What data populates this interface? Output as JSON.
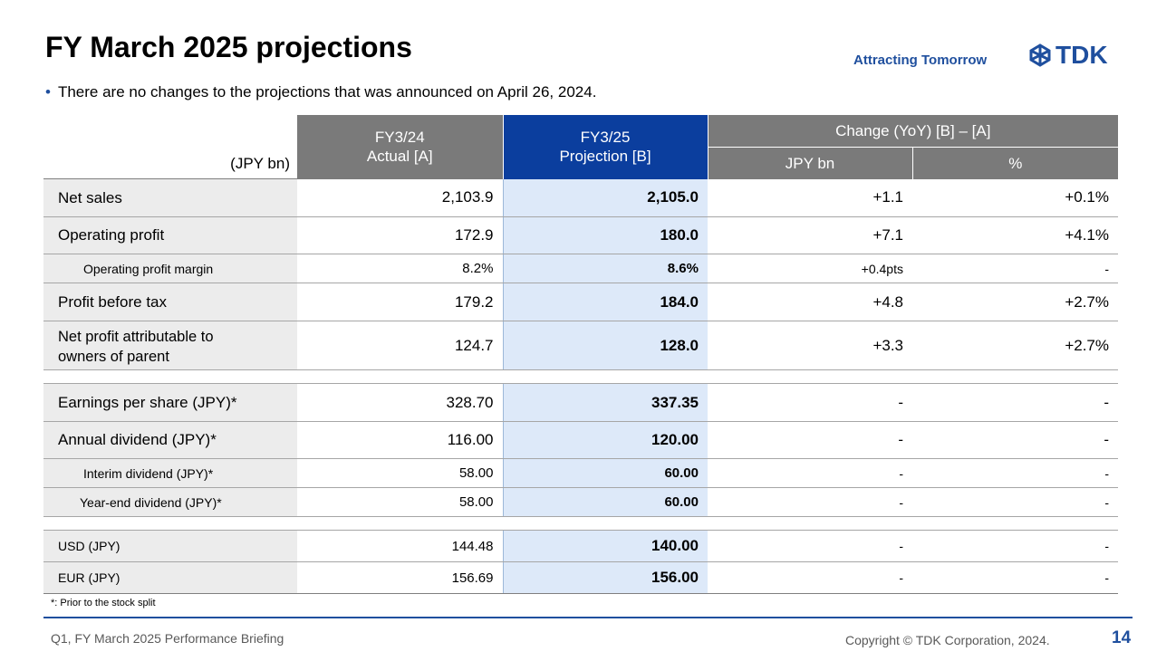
{
  "header": {
    "title": "FY March 2025 projections",
    "tagline": "Attracting Tomorrow",
    "logo_text": "TDK"
  },
  "bullet": "There are no changes to the projections that was announced on April 26, 2024.",
  "table": {
    "unit": "(JPY bn)",
    "col_actual_l1": "FY3/24",
    "col_actual_l2": "Actual [A]",
    "col_proj_l1": "FY3/25",
    "col_proj_l2": "Projection [B]",
    "col_change": "Change (YoY) [B] – [A]",
    "col_change_jpy": "JPY bn",
    "col_change_pct": "%",
    "rows": [
      {
        "label": "Net sales",
        "actual": "2,103.9",
        "projection": "2,105.0",
        "change": "+1.1",
        "pct": "+0.1%"
      },
      {
        "label": "Operating profit",
        "actual": "172.9",
        "projection": "180.0",
        "change": "+7.1",
        "pct": "+4.1%"
      },
      {
        "label": "Operating profit margin",
        "actual": "8.2%",
        "projection": "8.6%",
        "change": "+0.4pts",
        "pct": "-"
      },
      {
        "label": "Profit before tax",
        "actual": "179.2",
        "projection": "184.0",
        "change": "+4.8",
        "pct": "+2.7%"
      },
      {
        "label_l1": "Net profit attributable to",
        "label_l2": "owners of parent",
        "actual": "124.7",
        "projection": "128.0",
        "change": "+3.3",
        "pct": "+2.7%"
      },
      {
        "label": "Earnings per share (JPY)*",
        "actual": "328.70",
        "projection": "337.35",
        "change": "-",
        "pct": "-"
      },
      {
        "label": "Annual dividend (JPY)*",
        "actual": "116.00",
        "projection": "120.00",
        "change": "-",
        "pct": "-"
      },
      {
        "label": "Interim dividend (JPY)*",
        "actual": "58.00",
        "projection": "60.00",
        "change": "-",
        "pct": "-"
      },
      {
        "label": "Year-end dividend (JPY)*",
        "actual": "58.00",
        "projection": "60.00",
        "change": "-",
        "pct": "-"
      },
      {
        "label": "USD (JPY)",
        "actual": "144.48",
        "projection": "140.00",
        "change": "-",
        "pct": "-"
      },
      {
        "label": "EUR (JPY)",
        "actual": "156.69",
        "projection": "156.00",
        "change": "-",
        "pct": "-"
      }
    ]
  },
  "footnote": "*: Prior to the stock split",
  "footer": {
    "left": "Q1, FY March 2025 Performance Briefing",
    "copyright": "Copyright © TDK Corporation, 2024.",
    "page": "14"
  },
  "colors": {
    "brand_blue": "#1f4f9e",
    "header_gray": "#7a7a7a",
    "header_blue": "#0b3e9e",
    "projection_bg": "#dde9f9",
    "label_bg": "#ececec"
  }
}
